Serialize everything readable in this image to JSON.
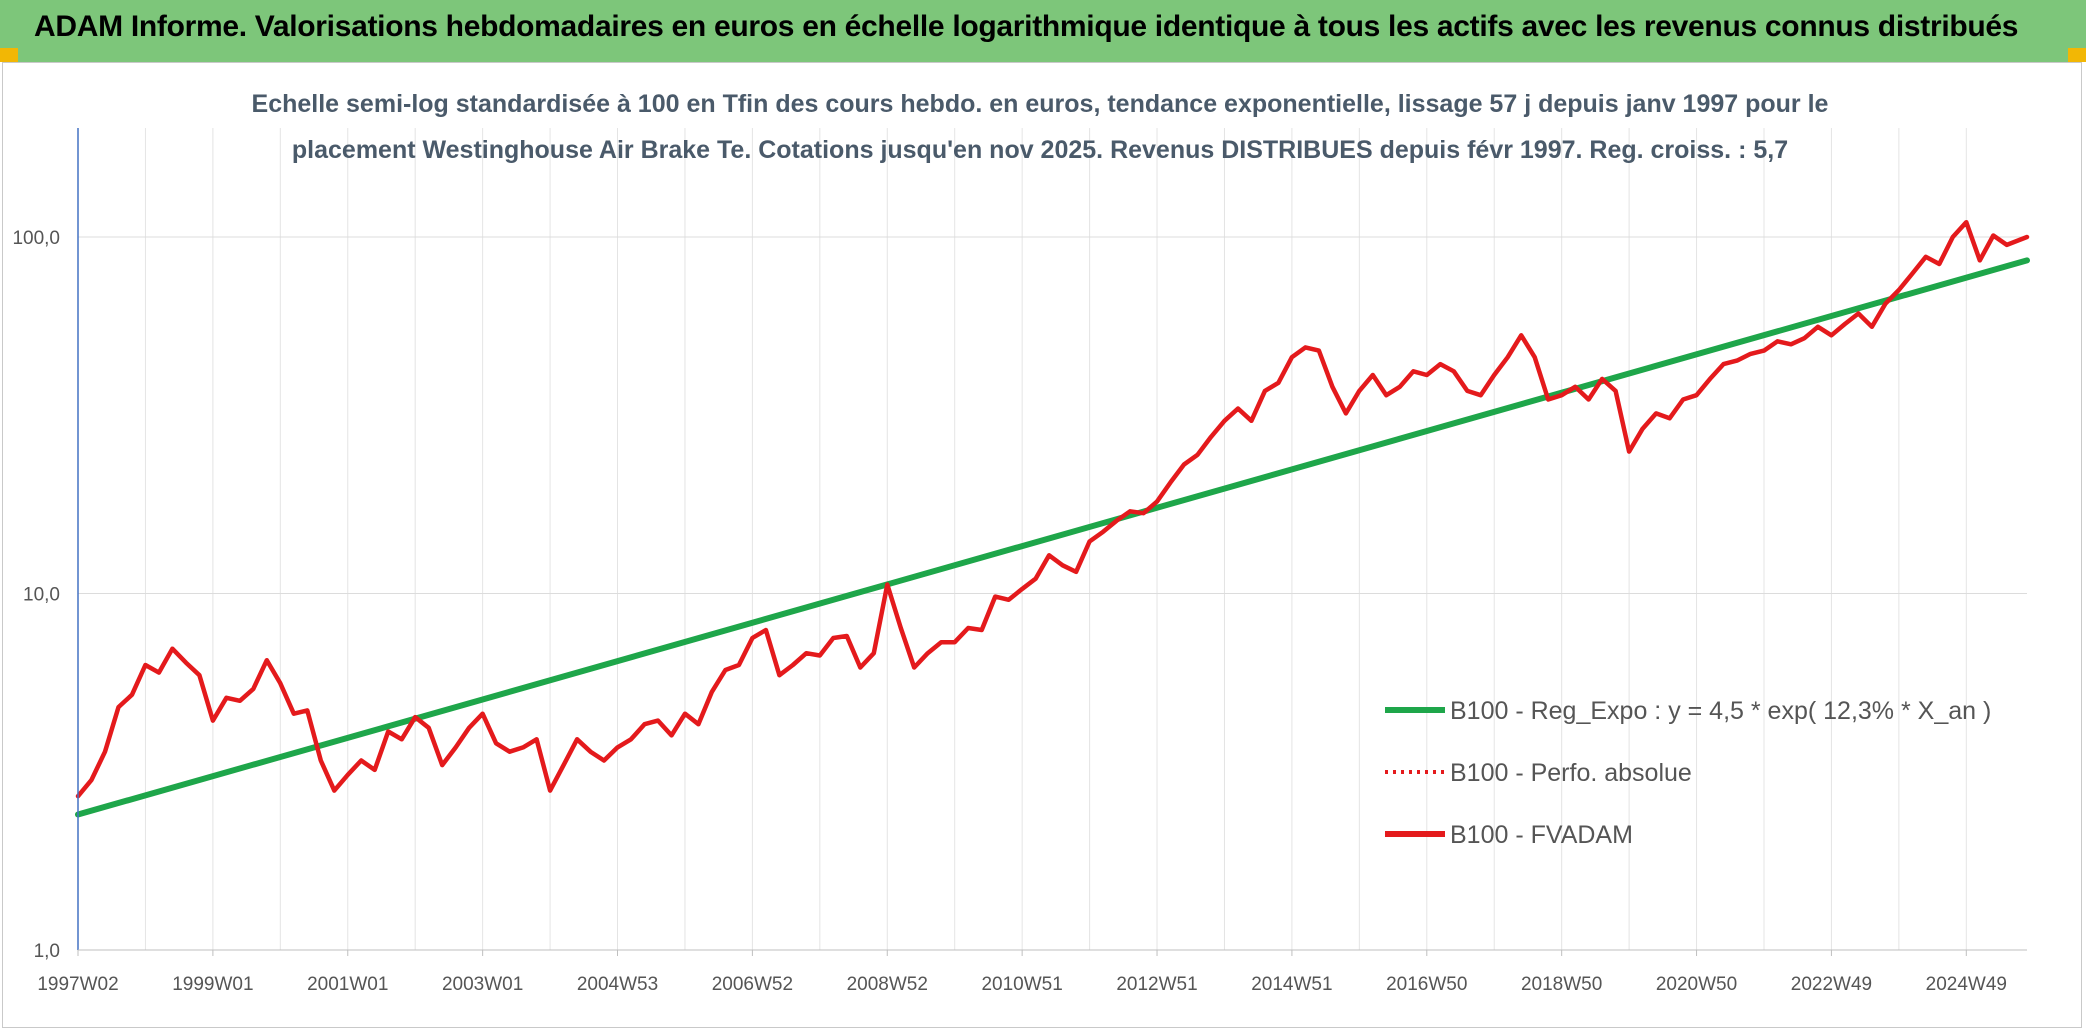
{
  "header": {
    "title": "ADAM Informe. Valorisations hebdomadaires en euros en échelle logarithmique identique à tous les actifs avec les revenus connus distribués"
  },
  "chart_data": {
    "type": "line",
    "subtitle_lines": [
      "Echelle semi-log standardisée à 100 en Tfin des cours hebdo. en euros, tendance exponentielle, lissage 57 j depuis janv 1997 pour le",
      "placement Westinghouse Air Brake Te. Cotations jusqu'en nov 2025. Revenus DISTRIBUES depuis févr 1997. Reg. croiss. : 5,7"
    ],
    "y_scale": "log",
    "ylim": [
      1,
      100
    ],
    "xlim": [
      1997.0,
      2025.9
    ],
    "y_ticks": [
      {
        "value": 1,
        "label": "1,0"
      },
      {
        "value": 10,
        "label": "10,0"
      },
      {
        "value": 100,
        "label": "100,0"
      }
    ],
    "x_ticks": [
      {
        "value": 1997.0,
        "label": "1997W02"
      },
      {
        "value": 1999.0,
        "label": "1999W01"
      },
      {
        "value": 2001.0,
        "label": "2001W01"
      },
      {
        "value": 2003.0,
        "label": "2003W01"
      },
      {
        "value": 2005.0,
        "label": "2004W53"
      },
      {
        "value": 2007.0,
        "label": "2006W52"
      },
      {
        "value": 2009.0,
        "label": "2008W52"
      },
      {
        "value": 2011.0,
        "label": "2010W51"
      },
      {
        "value": 2013.0,
        "label": "2012W51"
      },
      {
        "value": 2015.0,
        "label": "2014W51"
      },
      {
        "value": 2017.0,
        "label": "2016W50"
      },
      {
        "value": 2019.0,
        "label": "2018W50"
      },
      {
        "value": 2021.0,
        "label": "2020W50"
      },
      {
        "value": 2023.0,
        "label": "2022W49"
      },
      {
        "value": 2025.0,
        "label": "2024W49"
      }
    ],
    "grid": true,
    "legend_position": "bottom-right",
    "series": [
      {
        "name": "B100 - Reg_Expo : y = 4,5 * exp( 12,3% * X_an )",
        "color": "#1ea64a",
        "style": "solid",
        "x": [
          1997.0,
          2025.9
        ],
        "y": [
          2.4,
          86
        ]
      },
      {
        "name": "B100 - Perfo. absolue",
        "color": "#e41a1c",
        "style": "dotted",
        "x": [],
        "y": []
      },
      {
        "name": "B100 - FVADAM",
        "color": "#e41a1c",
        "style": "solid",
        "x": [
          1997.0,
          1997.2,
          1997.4,
          1997.6,
          1997.8,
          1998.0,
          1998.2,
          1998.4,
          1998.6,
          1998.8,
          1999.0,
          1999.2,
          1999.4,
          1999.6,
          1999.8,
          2000.0,
          2000.2,
          2000.4,
          2000.6,
          2000.8,
          2001.0,
          2001.2,
          2001.4,
          2001.6,
          2001.8,
          2002.0,
          2002.2,
          2002.4,
          2002.6,
          2002.8,
          2003.0,
          2003.2,
          2003.4,
          2003.6,
          2003.8,
          2004.0,
          2004.2,
          2004.4,
          2004.6,
          2004.8,
          2005.0,
          2005.2,
          2005.4,
          2005.6,
          2005.8,
          2006.0,
          2006.2,
          2006.4,
          2006.6,
          2006.8,
          2007.0,
          2007.2,
          2007.4,
          2007.6,
          2007.8,
          2008.0,
          2008.2,
          2008.4,
          2008.6,
          2008.8,
          2009.0,
          2009.2,
          2009.4,
          2009.6,
          2009.8,
          2010.0,
          2010.2,
          2010.4,
          2010.6,
          2010.8,
          2011.0,
          2011.2,
          2011.4,
          2011.6,
          2011.8,
          2012.0,
          2012.2,
          2012.4,
          2012.6,
          2012.8,
          2013.0,
          2013.2,
          2013.4,
          2013.6,
          2013.8,
          2014.0,
          2014.2,
          2014.4,
          2014.6,
          2014.8,
          2015.0,
          2015.2,
          2015.4,
          2015.6,
          2015.8,
          2016.0,
          2016.2,
          2016.4,
          2016.6,
          2016.8,
          2017.0,
          2017.2,
          2017.4,
          2017.6,
          2017.8,
          2018.0,
          2018.2,
          2018.4,
          2018.6,
          2018.8,
          2019.0,
          2019.2,
          2019.4,
          2019.6,
          2019.8,
          2020.0,
          2020.2,
          2020.4,
          2020.6,
          2020.8,
          2021.0,
          2021.2,
          2021.4,
          2021.6,
          2021.8,
          2022.0,
          2022.2,
          2022.4,
          2022.6,
          2022.8,
          2023.0,
          2023.2,
          2023.4,
          2023.6,
          2023.8,
          2024.0,
          2024.2,
          2024.4,
          2024.6,
          2024.8,
          2025.0,
          2025.2,
          2025.4,
          2025.6,
          2025.9
        ],
        "y": [
          2.7,
          3.0,
          3.6,
          4.8,
          5.2,
          6.3,
          6.0,
          7.0,
          6.4,
          5.9,
          4.4,
          5.1,
          5.0,
          5.4,
          6.5,
          5.6,
          4.6,
          4.7,
          3.4,
          2.8,
          3.1,
          3.4,
          3.2,
          4.1,
          3.9,
          4.5,
          4.2,
          3.3,
          3.7,
          4.2,
          4.6,
          3.8,
          3.6,
          3.7,
          3.9,
          2.8,
          3.3,
          3.9,
          3.6,
          3.4,
          3.7,
          3.9,
          4.3,
          4.4,
          4.0,
          4.6,
          4.3,
          5.3,
          6.1,
          6.3,
          7.5,
          7.9,
          5.9,
          6.3,
          6.8,
          6.7,
          7.5,
          7.6,
          6.2,
          6.8,
          10.6,
          8.0,
          6.2,
          6.8,
          7.3,
          7.3,
          8.0,
          7.9,
          9.8,
          9.6,
          10.3,
          11.0,
          12.8,
          12.0,
          11.5,
          14.0,
          14.9,
          16.0,
          17.0,
          16.8,
          18.1,
          20.5,
          23.0,
          24.5,
          27.5,
          30.5,
          33.0,
          30.5,
          37.0,
          39.0,
          46.0,
          49.0,
          48.0,
          38.0,
          32.0,
          37.0,
          41.0,
          36.0,
          38.0,
          42.0,
          41.0,
          44.0,
          42.0,
          37.0,
          36.0,
          41.0,
          46.0,
          53.0,
          46.0,
          35.0,
          36.0,
          38.0,
          35.0,
          40.0,
          37.0,
          25.0,
          29.0,
          32.0,
          31.0,
          35.0,
          36.0,
          40.0,
          44.0,
          45.0,
          47.0,
          48.0,
          51.0,
          50.0,
          52.0,
          56.0,
          53.0,
          57.0,
          61.0,
          56.0,
          65.0,
          71.0,
          79.0,
          88.0,
          84.0,
          100.0,
          110.0,
          86.0,
          101.0,
          95.0,
          100.0
        ]
      }
    ]
  }
}
